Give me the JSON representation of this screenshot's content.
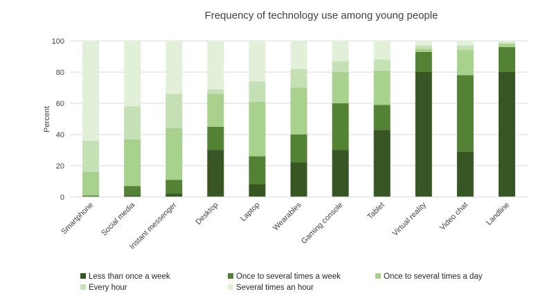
{
  "chart_data": {
    "type": "bar",
    "stacked": true,
    "title": "Frequency of technology use among young people",
    "xlabel": "",
    "ylabel": "Percent",
    "ylim": [
      0,
      100
    ],
    "yticks": [
      0,
      20,
      40,
      60,
      80,
      100
    ],
    "grid": true,
    "legend_position": "bottom",
    "categories": [
      "Smartphone",
      "Social media",
      "Instant messenger",
      "Desktop",
      "Laptop",
      "Wearables",
      "Gaming console",
      "Tablet",
      "Virtual reality",
      "Video chat",
      "Landline"
    ],
    "series": [
      {
        "name": "Less than once a week",
        "color": "#375623",
        "values": [
          0,
          1,
          2,
          30,
          8,
          22,
          30,
          43,
          80,
          29,
          80
        ]
      },
      {
        "name": "Once to several times a week",
        "color": "#548235",
        "values": [
          1,
          6,
          9,
          15,
          18,
          18,
          30,
          16,
          13,
          49,
          16
        ]
      },
      {
        "name": "Once to several times a day",
        "color": "#a9d18e",
        "values": [
          15,
          30,
          33,
          21,
          35,
          30,
          20,
          22,
          2,
          16,
          2
        ]
      },
      {
        "name": "Every hour",
        "color": "#c5e0b4",
        "values": [
          20,
          21,
          22,
          3,
          13,
          12,
          7,
          7,
          2,
          3,
          1
        ]
      },
      {
        "name": "Several times an hour",
        "color": "#e2f0d9",
        "values": [
          64,
          42,
          34,
          31,
          26,
          18,
          13,
          12,
          3,
          3,
          1
        ]
      }
    ]
  }
}
